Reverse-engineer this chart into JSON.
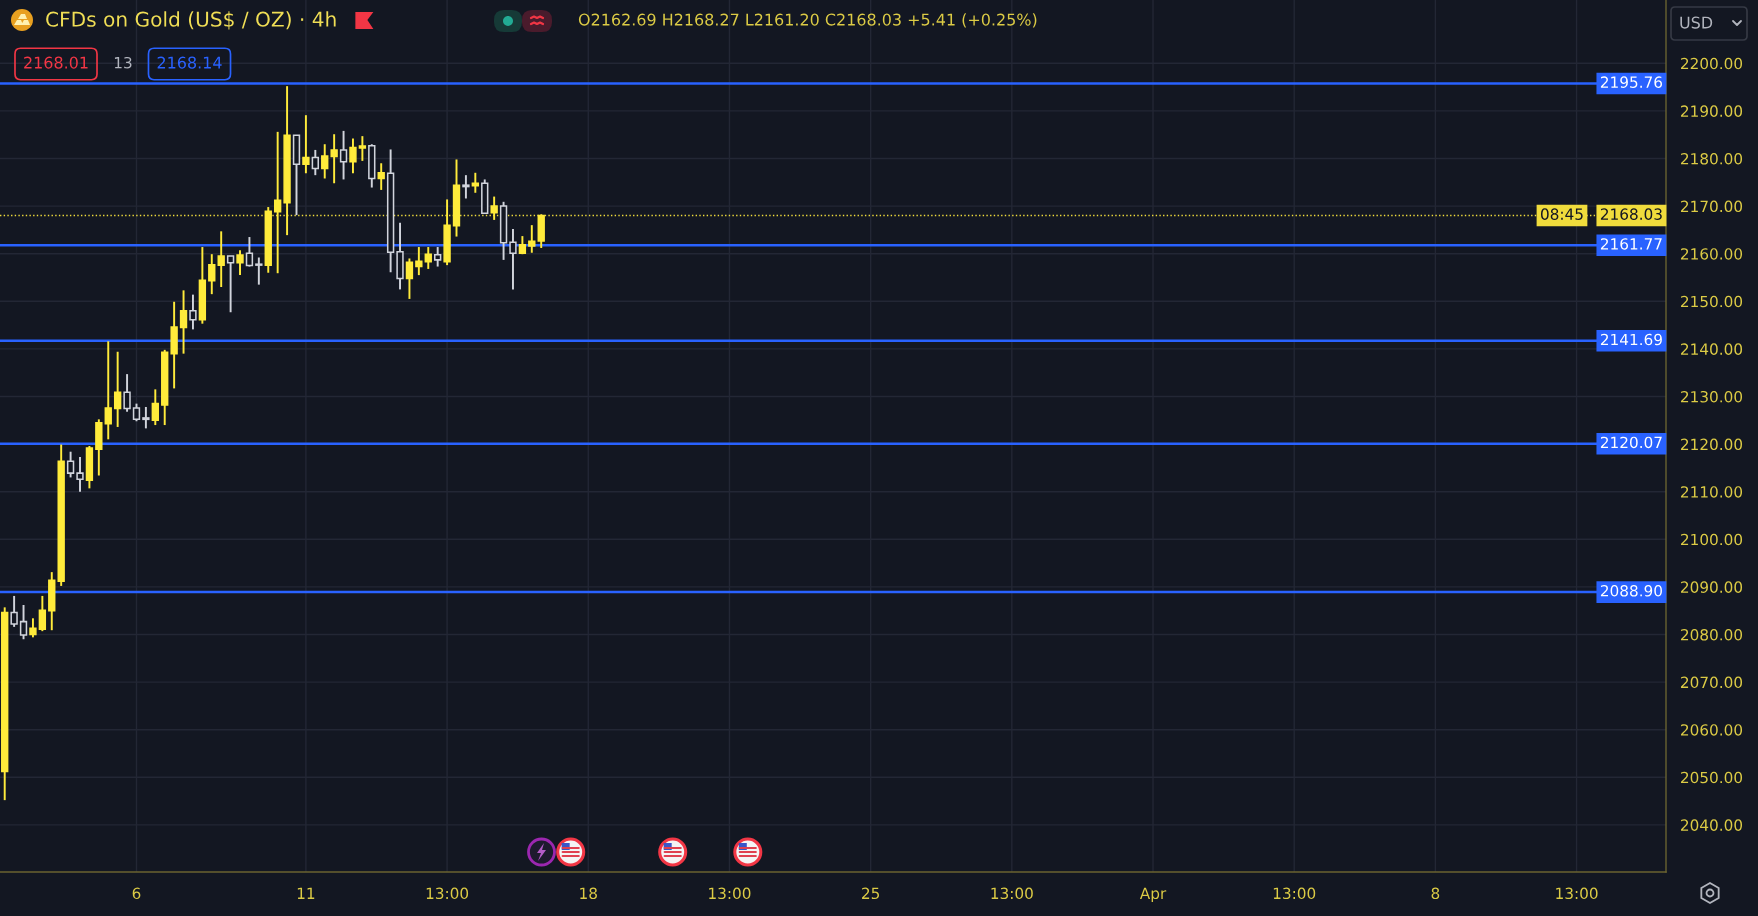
{
  "chart_data": {
    "type": "candlestick",
    "title": "CFDs on Gold (US$ / OZ) · 4h",
    "subtitle": "O2162.69 H2168.27 L2161.20 C2168.03 +5.41 (+0.25%)",
    "annotations": [
      "2168.01",
      "13",
      "2168.14",
      "08:45",
      "USD"
    ],
    "categories": [
      null,
      null,
      null,
      null,
      null,
      null,
      null,
      null,
      null,
      null,
      null,
      null,
      null,
      null,
      "6",
      null,
      null,
      null,
      null,
      null,
      null,
      null,
      null,
      null,
      null,
      null,
      null,
      null,
      null,
      null,
      null,
      null,
      "11",
      null,
      null,
      null,
      null,
      null,
      null,
      null,
      null,
      null,
      null,
      null,
      null,
      null,
      null,
      "13:00",
      null,
      null,
      null,
      null,
      null,
      null,
      null,
      null,
      null,
      null,
      null,
      null,
      null,
      null,
      "18",
      null,
      null,
      null,
      null,
      null,
      null,
      null,
      null,
      null,
      null,
      null,
      null,
      null,
      null,
      "13:00",
      null,
      null,
      null,
      null,
      null,
      null,
      null,
      null,
      null,
      null,
      null,
      null,
      null,
      null,
      "25",
      null,
      null,
      null,
      null,
      null,
      null,
      null,
      null,
      null,
      null,
      null,
      null,
      null,
      null,
      "13:00",
      null,
      null,
      null,
      null,
      null,
      null,
      null,
      null,
      null,
      null,
      null,
      null,
      null,
      null,
      "Apr",
      null,
      null,
      null,
      null,
      null,
      null,
      null,
      null,
      null,
      null,
      null,
      null,
      null,
      null,
      "13:00",
      null,
      null,
      null,
      null,
      null,
      null,
      null,
      null,
      null,
      null,
      null,
      null,
      null,
      null,
      "8",
      null,
      null,
      null,
      null,
      null,
      null,
      null,
      null,
      null,
      null,
      null,
      null,
      null,
      null,
      "13:00",
      null,
      null,
      null,
      null,
      null,
      null,
      null,
      null,
      null
    ],
    "ohlc": [
      [
        2051.2,
        2085.7,
        2045.2,
        2084.6
      ],
      [
        2084.6,
        2088.1,
        2081.6,
        2082.2
      ],
      [
        2082.7,
        2086.2,
        2079.0,
        2079.9
      ],
      [
        2080.0,
        2083.4,
        2079.4,
        2081.3
      ],
      [
        2081.1,
        2088.1,
        2080.7,
        2085.1
      ],
      [
        2085.0,
        2093.1,
        2080.9,
        2091.4
      ],
      [
        2091.2,
        2119.9,
        2090.2,
        2116.4
      ],
      [
        2116.4,
        2118.4,
        2113.0,
        2113.9
      ],
      [
        2113.9,
        2117.3,
        2110.0,
        2112.6
      ],
      [
        2112.4,
        2119.6,
        2110.7,
        2119.2
      ],
      [
        2118.9,
        2125.2,
        2113.4,
        2124.5
      ],
      [
        2124.3,
        2141.6,
        2121.0,
        2127.6
      ],
      [
        2127.5,
        2139.4,
        2123.6,
        2130.9
      ],
      [
        2130.9,
        2134.7,
        2126.8,
        2127.5
      ],
      [
        2127.6,
        2128.5,
        2124.8,
        2125.2
      ],
      [
        2125.5,
        2127.8,
        2123.3,
        2125.2
      ],
      [
        2125.0,
        2131.5,
        2124.0,
        2128.5
      ],
      [
        2128.2,
        2139.8,
        2124.0,
        2139.3
      ],
      [
        2139.0,
        2149.9,
        2131.7,
        2144.6
      ],
      [
        2144.5,
        2152.3,
        2139.0,
        2148.0
      ],
      [
        2148.0,
        2151.4,
        2144.1,
        2146.1
      ],
      [
        2146.1,
        2161.4,
        2145.3,
        2154.4
      ],
      [
        2154.3,
        2159.9,
        2151.5,
        2157.7
      ],
      [
        2157.6,
        2164.7,
        2153.0,
        2159.5
      ],
      [
        2159.5,
        2159.5,
        2147.7,
        2158.1
      ],
      [
        2158.1,
        2160.7,
        2155.5,
        2159.7
      ],
      [
        2160.1,
        2163.5,
        2157.3,
        2157.5
      ],
      [
        2157.8,
        2159.2,
        2153.5,
        2157.6
      ],
      [
        2157.6,
        2169.8,
        2156.0,
        2168.9
      ],
      [
        2168.8,
        2185.6,
        2155.9,
        2171.2
      ],
      [
        2170.7,
        2195.2,
        2163.9,
        2184.9
      ],
      [
        2184.9,
        2184.9,
        2168.1,
        2178.8
      ],
      [
        2178.8,
        2189.1,
        2176.9,
        2180.2
      ],
      [
        2180.2,
        2181.8,
        2176.5,
        2177.9
      ],
      [
        2177.9,
        2183.0,
        2175.8,
        2180.5
      ],
      [
        2180.4,
        2185.1,
        2174.8,
        2181.8
      ],
      [
        2181.8,
        2185.8,
        2175.6,
        2179.3
      ],
      [
        2179.3,
        2184.2,
        2176.9,
        2182.3
      ],
      [
        2182.2,
        2184.7,
        2179.5,
        2182.6
      ],
      [
        2182.7,
        2183.0,
        2173.9,
        2175.8
      ],
      [
        2175.8,
        2179.0,
        2173.4,
        2177.0
      ],
      [
        2176.9,
        2181.9,
        2156.1,
        2160.3
      ],
      [
        2160.4,
        2166.5,
        2152.5,
        2154.8
      ],
      [
        2154.8,
        2159.0,
        2150.5,
        2158.2
      ],
      [
        2157.3,
        2161.4,
        2155.5,
        2158.4
      ],
      [
        2158.3,
        2161.4,
        2156.8,
        2159.9
      ],
      [
        2159.8,
        2161.4,
        2157.3,
        2158.7
      ],
      [
        2158.3,
        2171.4,
        2157.6,
        2166.0
      ],
      [
        2165.9,
        2179.8,
        2163.6,
        2174.4
      ],
      [
        2174.4,
        2176.5,
        2171.6,
        2174.1
      ],
      [
        2174.3,
        2177.0,
        2172.8,
        2174.8
      ],
      [
        2174.8,
        2175.6,
        2168.5,
        2168.5
      ],
      [
        2168.6,
        2172.0,
        2167.1,
        2170.0
      ],
      [
        2170.0,
        2170.9,
        2158.7,
        2162.3
      ],
      [
        2162.4,
        2165.2,
        2152.5,
        2160.1
      ],
      [
        2160.1,
        2163.7,
        2159.9,
        2161.9
      ],
      [
        2161.6,
        2166.0,
        2160.2,
        2162.6
      ],
      [
        2162.69,
        2168.27,
        2161.2,
        2168.03
      ],
      null,
      null,
      null,
      null,
      null,
      null,
      null,
      null,
      null,
      null,
      null,
      null,
      null,
      null,
      null,
      null,
      null,
      null,
      null,
      null,
      null,
      null,
      null,
      null,
      null,
      null,
      null,
      null,
      null,
      null,
      null,
      null,
      null,
      null,
      null,
      null,
      null,
      null,
      null,
      null,
      null,
      null,
      null,
      null,
      null,
      null,
      null,
      null,
      null,
      null,
      null,
      null,
      null,
      null,
      null,
      null,
      null,
      null,
      null,
      null,
      null,
      null,
      null,
      null,
      null,
      null,
      null,
      null,
      null,
      null,
      null,
      null,
      null,
      null,
      null,
      null,
      null,
      null,
      null,
      null,
      null,
      null,
      null,
      null,
      null,
      null,
      null,
      null,
      null,
      null,
      null,
      null,
      null,
      null,
      null,
      null,
      null,
      null,
      null,
      null,
      null,
      null,
      null,
      null,
      null,
      null,
      null,
      null,
      null,
      null,
      null,
      null,
      null,
      null,
      null,
      null,
      null,
      null,
      null
    ],
    "colors": [
      "#ffeb3b",
      "#d1d4dc",
      "#d1d4dc",
      "#ffeb3b",
      "#ffeb3b",
      "#ffeb3b",
      "#ffeb3b",
      "#d1d4dc",
      "#d1d4dc",
      "#ffeb3b",
      "#ffeb3b",
      "#ffeb3b",
      "#ffeb3b",
      "#d1d4dc",
      "#d1d4dc",
      "#d1d4dc",
      "#ffeb3b",
      "#ffeb3b",
      "#ffeb3b",
      "#ffeb3b",
      "#d1d4dc",
      "#ffeb3b",
      "#ffeb3b",
      "#ffeb3b",
      "#d1d4dc",
      "#ffeb3b",
      "#d1d4dc",
      "#d1d4dc",
      "#ffeb3b",
      "#ffeb3b",
      "#ffeb3b",
      "#d1d4dc",
      "#ffeb3b",
      "#d1d4dc",
      "#ffeb3b",
      "#ffeb3b",
      "#d1d4dc",
      "#ffeb3b",
      "#ffeb3b",
      "#d1d4dc",
      "#ffeb3b",
      "#d1d4dc",
      "#d1d4dc",
      "#ffeb3b",
      "#ffeb3b",
      "#ffeb3b",
      "#d1d4dc",
      "#ffeb3b",
      "#ffeb3b",
      "#d1d4dc",
      "#ffeb3b",
      "#d1d4dc",
      "#ffeb3b",
      "#d1d4dc",
      "#d1d4dc",
      "#ffeb3b",
      "#ffeb3b",
      "#ffeb3b",
      null,
      null,
      null,
      null,
      null,
      null,
      null,
      null,
      null,
      null,
      null,
      null,
      null,
      null,
      null,
      null,
      null,
      null,
      null,
      null,
      null,
      null,
      null,
      null,
      null,
      null,
      null,
      null,
      null,
      null,
      null,
      null,
      null,
      null,
      null,
      null,
      null,
      null,
      null,
      null,
      null,
      null,
      null,
      null,
      null,
      null,
      null,
      null,
      null,
      null,
      null,
      null,
      null,
      null,
      null,
      null,
      null,
      null,
      null,
      null,
      null,
      null,
      null,
      null,
      null,
      null,
      null,
      null,
      null,
      null,
      null,
      null,
      null,
      null,
      null,
      null,
      null,
      null,
      null,
      null,
      null,
      null,
      null,
      null,
      null,
      null,
      null,
      null,
      null,
      null,
      null,
      null,
      null,
      null,
      null,
      null,
      null,
      null,
      null,
      null,
      null,
      null,
      null,
      null,
      null,
      null,
      null,
      null,
      null,
      null,
      null,
      null,
      null,
      null,
      null,
      null,
      null,
      null,
      null
    ],
    "ylim": [
      2030.1,
      2213.3
    ],
    "yticks": [
      {
        "value": 2040,
        "label": "2040.00"
      },
      {
        "value": 2050,
        "label": "2050.00"
      },
      {
        "value": 2060,
        "label": "2060.00"
      },
      {
        "value": 2070,
        "label": "2070.00"
      },
      {
        "value": 2080,
        "label": "2080.00"
      },
      {
        "value": 2090,
        "label": "2090.00"
      },
      {
        "value": 2100,
        "label": "2100.00"
      },
      {
        "value": 2110,
        "label": "2110.00"
      },
      {
        "value": 2120,
        "label": "2120.00"
      },
      {
        "value": 2130,
        "label": "2130.00"
      },
      {
        "value": 2140,
        "label": "2140.00"
      },
      {
        "value": 2150,
        "label": "2150.00"
      },
      {
        "value": 2160,
        "label": "2160.00"
      },
      {
        "value": 2170,
        "label": "2170.00"
      },
      {
        "value": 2180,
        "label": "2180.00"
      },
      {
        "value": 2190,
        "label": "2190.00"
      },
      {
        "value": 2200,
        "label": "2200.00"
      }
    ],
    "ref_lines": [
      {
        "axis": "y",
        "value": 2195.76,
        "label": "2195.76",
        "color": "#2962ff",
        "line_style": "solid"
      },
      {
        "axis": "y",
        "value": 2161.77,
        "label": "2161.77",
        "color": "#2962ff",
        "line_style": "solid"
      },
      {
        "axis": "y",
        "value": 2141.69,
        "label": "2141.69",
        "color": "#2962ff",
        "line_style": "solid"
      },
      {
        "axis": "y",
        "value": 2120.07,
        "label": "2120.07",
        "color": "#2962ff",
        "line_style": "solid"
      },
      {
        "axis": "y",
        "value": 2088.9,
        "label": "2088.90",
        "color": "#2962ff",
        "line_style": "solid"
      },
      {
        "axis": "y",
        "value": 2168.03,
        "label": "2168.03",
        "color": "#f0dc3c",
        "line_style": "dotted"
      }
    ],
    "grid": true
  }
}
